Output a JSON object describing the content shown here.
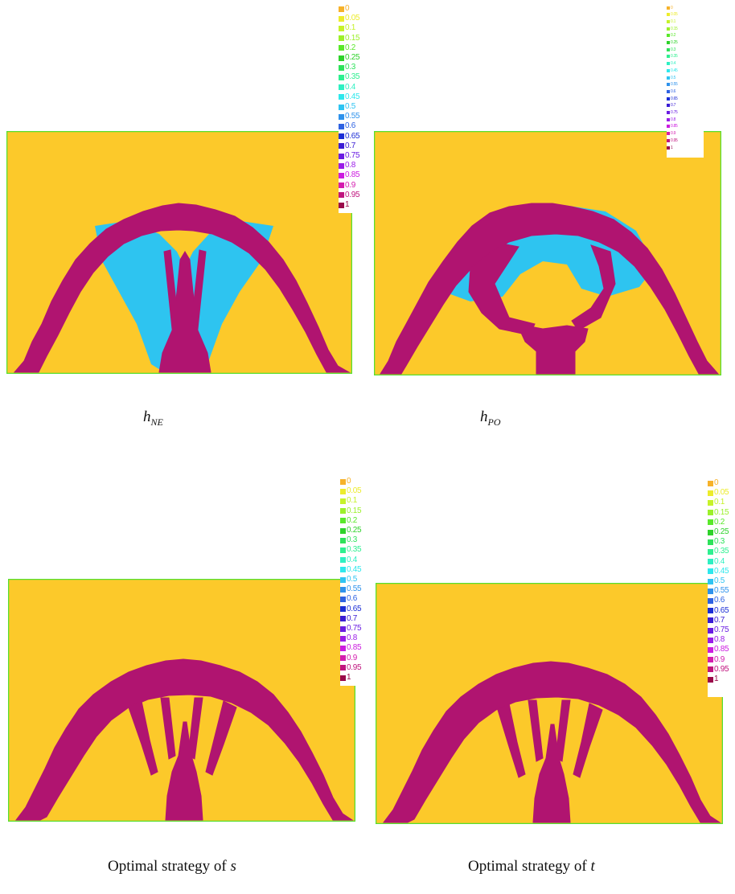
{
  "figure": {
    "colors": {
      "domain": "#fcc92a",
      "material": "#b01470",
      "intermediate": "#2ec4f0",
      "border": "#56e030"
    },
    "legend": {
      "labels": [
        "0",
        "0.05",
        "0.1",
        "0.15",
        "0.2",
        "0.25",
        "0.3",
        "0.35",
        "0.4",
        "0.45",
        "0.5",
        "0.55",
        "0.6",
        "0.65",
        "0.7",
        "0.75",
        "0.8",
        "0.85",
        "0.9",
        "0.95",
        "1"
      ],
      "colors": [
        "#f6b22a",
        "#ecec2c",
        "#c6f22a",
        "#9cf02a",
        "#5ae82a",
        "#2ed22a",
        "#2ee25a",
        "#2ef090",
        "#2ef0c2",
        "#2ee8ec",
        "#2ec4f2",
        "#2e92ec",
        "#2e62e2",
        "#1c2ed6",
        "#3a1cd4",
        "#6a1ce2",
        "#9a1ce8",
        "#cc1ce0",
        "#d41cae",
        "#c0147e",
        "#9a0a4a"
      ]
    },
    "panels": [
      {
        "id": "ne",
        "caption": "h",
        "subscript": "NE"
      },
      {
        "id": "po",
        "caption": "h",
        "subscript": "PO"
      },
      {
        "id": "s",
        "caption_text": "Optimal strategy of ",
        "caption_var": "s"
      },
      {
        "id": "t",
        "caption_text": "Optimal strategy of ",
        "caption_var": "t"
      }
    ]
  }
}
